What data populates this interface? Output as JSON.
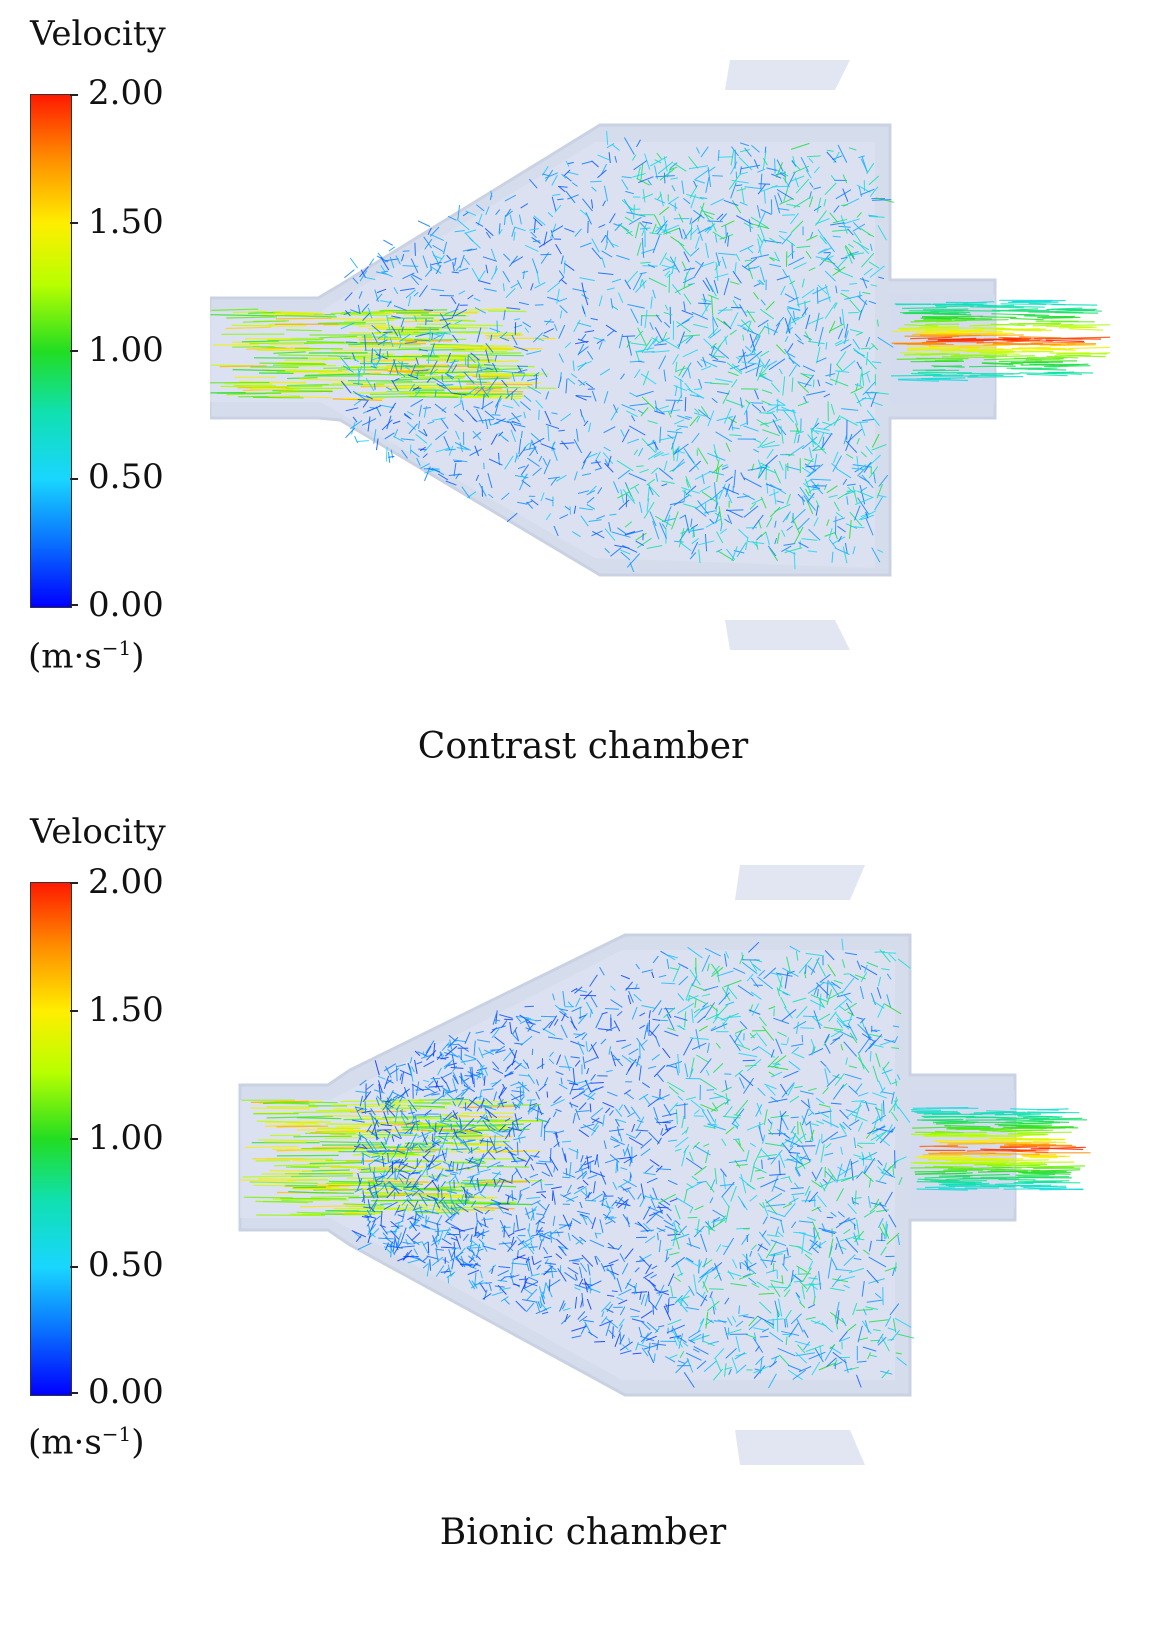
{
  "legend": {
    "title": "Velocity",
    "ticks": [
      "2.00",
      "1.50",
      "1.00",
      "0.50",
      "0.00"
    ],
    "unit_base": "(m·s",
    "unit_exp": "−1",
    "unit_close": ")"
  },
  "panels": [
    {
      "caption": "Contrast chamber"
    },
    {
      "caption": "Bionic chamber"
    }
  ],
  "colors": {
    "v0": "#0000ff",
    "v05": "#19d6ff",
    "v1": "#22dd22",
    "v15": "#ffee00",
    "v2": "#ff1a00",
    "housing": "#c8d2e8"
  }
}
